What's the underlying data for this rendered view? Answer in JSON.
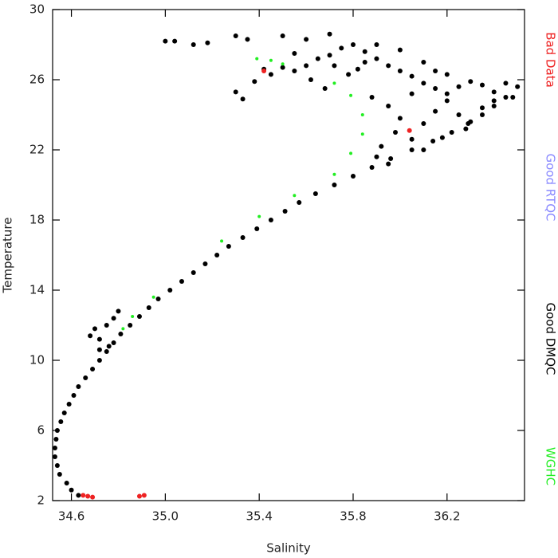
{
  "chart_data": {
    "type": "scatter",
    "x_label": "Salinity",
    "y_label": "Temperature",
    "xlim": [
      34.52,
      36.53
    ],
    "ylim": [
      2,
      30
    ],
    "xticks": [
      34.6,
      {
        "value": 35,
        "label": "35.0"
      },
      35.4,
      35.8,
      36.2
    ],
    "yticks": [
      2,
      6,
      10,
      14,
      18,
      22,
      26,
      30
    ],
    "series": [
      {
        "name": "Good DMQC",
        "color": "#000000",
        "x": [
          34.63,
          34.58,
          34.54,
          34.53,
          34.54,
          34.57,
          34.61,
          34.66,
          34.72,
          34.78,
          34.85,
          34.93,
          35.02,
          35.12,
          35.22,
          35.33,
          35.45,
          35.57,
          35.72,
          35.88,
          36.05,
          36.22,
          36.35,
          36.45,
          34.6,
          34.55,
          34.53,
          34.535,
          34.555,
          34.59,
          34.63,
          34.69,
          34.75,
          34.81,
          34.89,
          34.97,
          35.07,
          35.17,
          35.27,
          35.39,
          35.51,
          35.64,
          35.8,
          35.96,
          36.14,
          36.29,
          36.4,
          36.48,
          34.68,
          34.7,
          34.72,
          34.75,
          34.78,
          34.8,
          34.76,
          34.72,
          35.0,
          35.04,
          35.12,
          35.18,
          35.42,
          35.5,
          35.55,
          35.6,
          35.65,
          35.7,
          35.75,
          35.8,
          35.85,
          35.9,
          35.95,
          36.0,
          36.05,
          36.1,
          36.15,
          36.2,
          36.25,
          36.3,
          36.35,
          36.4,
          36.45,
          36.5,
          35.5,
          35.6,
          35.7,
          35.3,
          35.35,
          35.3,
          35.33,
          35.38,
          35.62,
          35.68,
          35.78,
          35.88,
          35.95,
          36.0,
          35.98,
          36.05,
          36.1,
          36.15,
          36.2,
          36.25,
          36.3,
          36.35,
          36.4,
          35.92,
          35.9,
          35.95,
          36.1,
          36.18,
          36.28,
          35.85,
          35.9,
          36.0,
          36.1,
          36.15,
          36.05,
          36.2,
          35.72,
          35.82,
          35.55,
          35.45
        ],
        "y": [
          2.3,
          3,
          4,
          5,
          6,
          7,
          8,
          9,
          10,
          11,
          12,
          13,
          14,
          15,
          16,
          17,
          18,
          19,
          20,
          21,
          22,
          23,
          24,
          25,
          2.6,
          3.5,
          4.5,
          5.5,
          6.5,
          7.5,
          8.5,
          9.5,
          10.5,
          11.5,
          12.5,
          13.5,
          14.5,
          15.5,
          16.5,
          17.5,
          18.5,
          19.5,
          20.5,
          21.5,
          22.5,
          23.5,
          24.5,
          25,
          11.4,
          11.8,
          11.2,
          12,
          12.4,
          12.8,
          10.8,
          10.6,
          28.2,
          28.2,
          28,
          28.1,
          26.6,
          26.7,
          26.5,
          26.8,
          27.2,
          27.4,
          27.8,
          28,
          27.6,
          27.2,
          26.8,
          26.5,
          26.2,
          25.8,
          25.5,
          25.2,
          25.6,
          25.9,
          25.7,
          25.3,
          25.8,
          25.6,
          28.5,
          28.3,
          28.6,
          28.5,
          28.3,
          25.3,
          24.9,
          25.9,
          26,
          25.5,
          26.3,
          25,
          24.5,
          23.8,
          23,
          22.6,
          23.5,
          24.2,
          24.8,
          24,
          23.6,
          24.4,
          24.8,
          22.2,
          21.6,
          21.2,
          22,
          22.7,
          23.2,
          27,
          28,
          27.7,
          27,
          26.5,
          25.2,
          26.3,
          26.8,
          26.6,
          27.5,
          26.3
        ]
      },
      {
        "name": "WGHC",
        "color": "#22ee22",
        "x": [
          35.39,
          35.45,
          35.5,
          35.72,
          35.79,
          35.84,
          35.84,
          35.79,
          35.72,
          35.55,
          35.4,
          35.24,
          34.95,
          34.82,
          34.86
        ],
        "y": [
          27.2,
          27.1,
          26.9,
          25.8,
          25.1,
          24,
          22.9,
          21.8,
          20.6,
          19.4,
          18.2,
          16.8,
          13.6,
          11.8,
          12.5
        ]
      },
      {
        "name": "Good RTQC",
        "color": "#8888ff",
        "x": [],
        "y": []
      },
      {
        "name": "Bad Data",
        "color": "#ee2222",
        "x": [
          34.65,
          34.67,
          34.69,
          34.89,
          34.91,
          35.42,
          36.04
        ],
        "y": [
          2.3,
          2.25,
          2.2,
          2.25,
          2.3,
          26.5,
          23.1
        ]
      }
    ]
  }
}
